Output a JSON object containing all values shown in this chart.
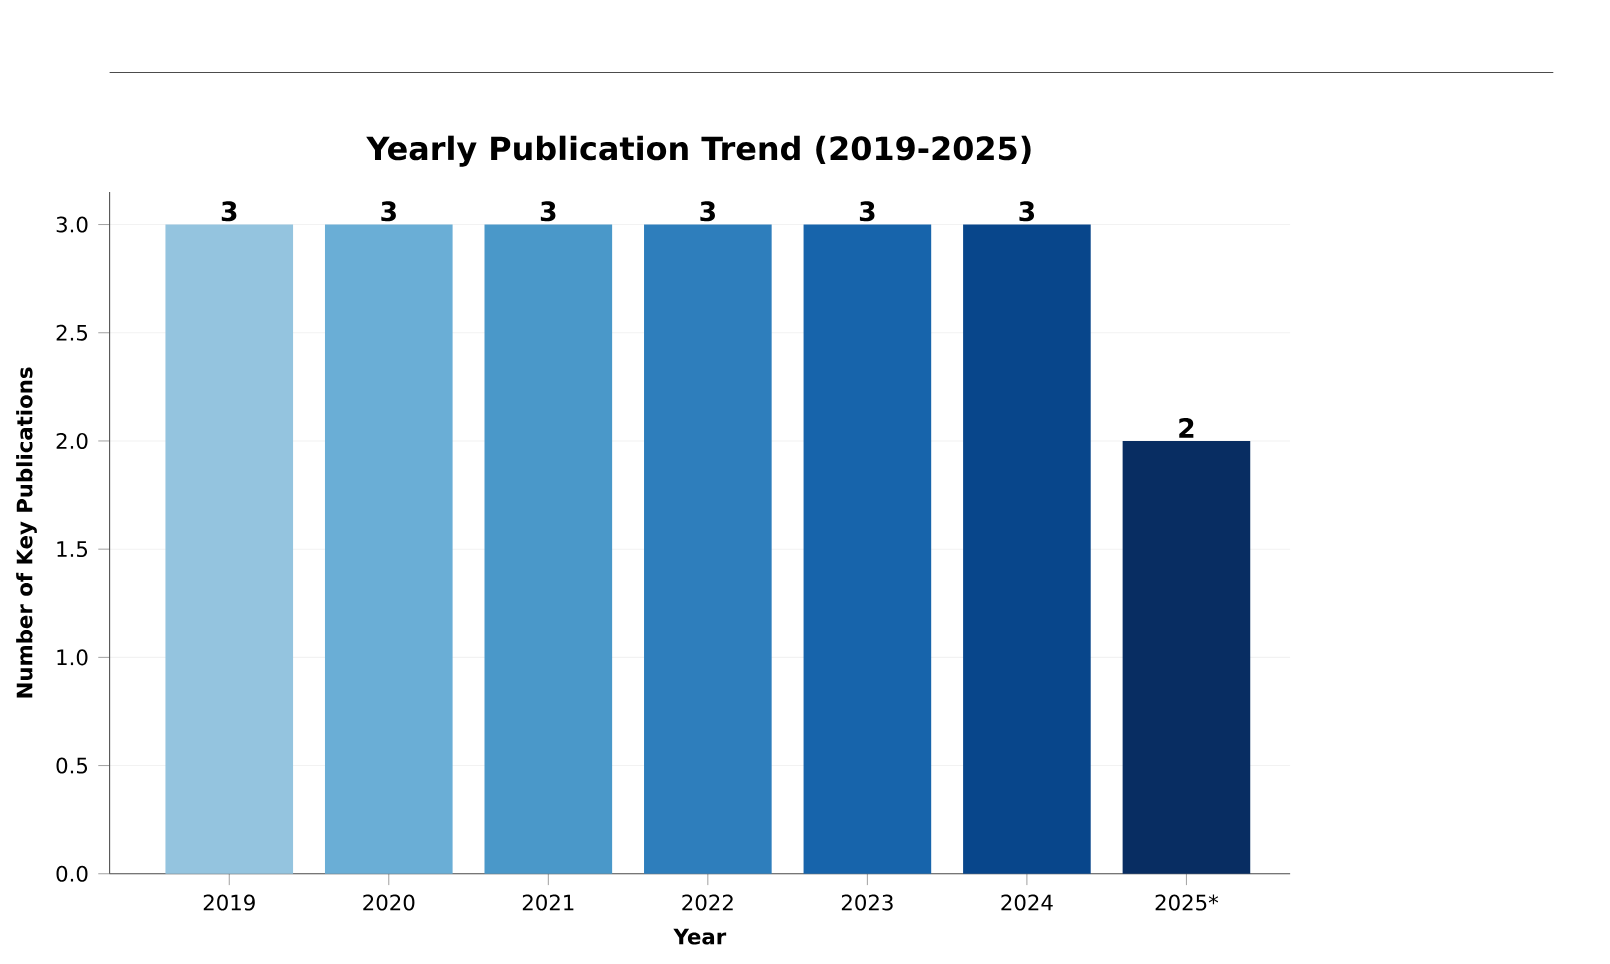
{
  "chart_data": {
    "type": "bar",
    "title": "Yearly Publication Trend (2019-2025)",
    "xlabel": "Year",
    "ylabel": "Number of Key Publications",
    "categories": [
      "2019",
      "2020",
      "2021",
      "2022",
      "2023",
      "2024",
      "2025*"
    ],
    "values": [
      3,
      3,
      3,
      3,
      3,
      3,
      2
    ],
    "colors": [
      "#94c4df",
      "#6aaed6",
      "#4a98c9",
      "#2e7ebc",
      "#1764ab",
      "#08468b",
      "#082d62"
    ],
    "ylim": [
      0,
      3.15
    ],
    "yticks": [
      {
        "value": 0,
        "label": "0.0"
      },
      {
        "value": 0.5,
        "label": "0.5"
      },
      {
        "value": 1,
        "label": "1.0"
      },
      {
        "value": 1.5,
        "label": "1.5"
      },
      {
        "value": 2,
        "label": "2.0"
      },
      {
        "value": 2.5,
        "label": "2.5"
      },
      {
        "value": 3,
        "label": "3.0"
      }
    ],
    "grid": "y",
    "data_labels": true
  }
}
